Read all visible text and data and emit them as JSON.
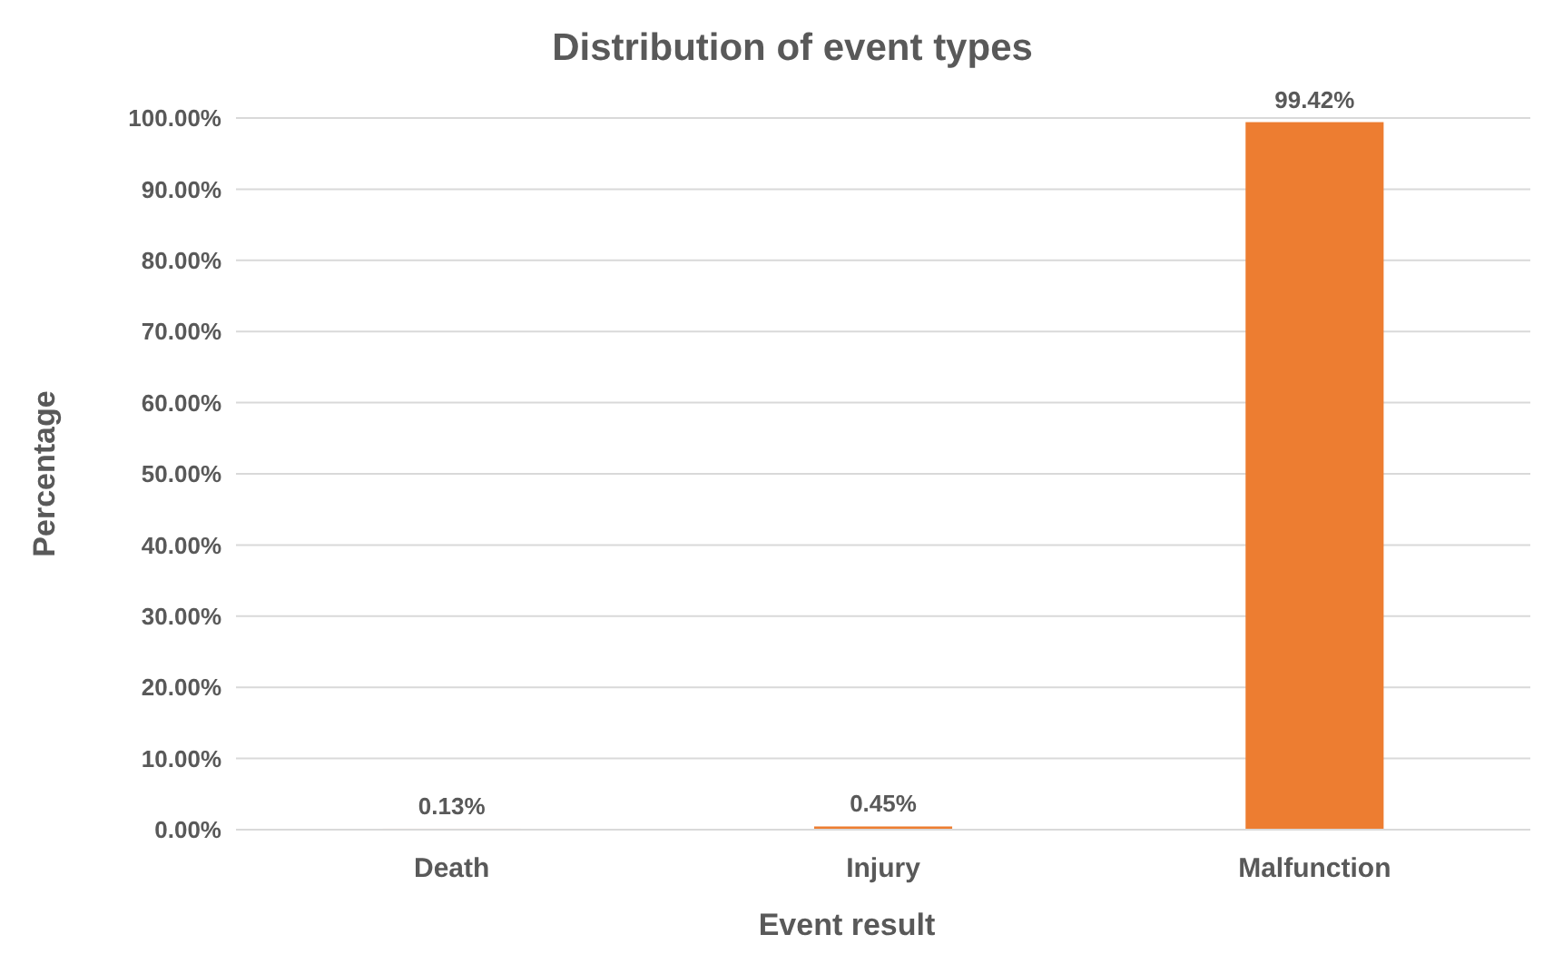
{
  "chart_data": {
    "type": "bar",
    "title": "Distribution of event types",
    "xlabel": "Event result",
    "ylabel": "Percentage",
    "categories": [
      "Death",
      "Injury",
      "Malfunction"
    ],
    "values": [
      0.13,
      0.45,
      99.42
    ],
    "color": "#ed7d31",
    "value_labels": [
      "0.13%",
      "0.45%",
      "99.42%"
    ],
    "ylim": [
      0,
      100
    ],
    "yticks": [
      {
        "value": 0,
        "label": "0.00%"
      },
      {
        "value": 10,
        "label": "10.00%"
      },
      {
        "value": 20,
        "label": "20.00%"
      },
      {
        "value": 30,
        "label": "30.00%"
      },
      {
        "value": 40,
        "label": "40.00%"
      },
      {
        "value": 50,
        "label": "50.00%"
      },
      {
        "value": 60,
        "label": "60.00%"
      },
      {
        "value": 70,
        "label": "70.00%"
      },
      {
        "value": 80,
        "label": "80.00%"
      },
      {
        "value": 90,
        "label": "90.00%"
      },
      {
        "value": 100,
        "label": "100.00%"
      }
    ],
    "grid": "y"
  }
}
